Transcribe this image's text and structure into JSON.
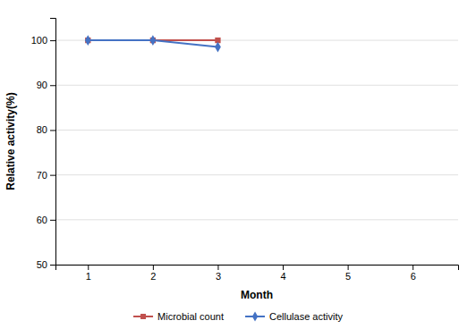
{
  "chart_data": {
    "type": "line",
    "xlabel": "Month",
    "ylabel": "Relative activity(%)",
    "x": [
      1,
      2,
      3
    ],
    "series": [
      {
        "name": "Microbial count",
        "color": "#C0504D",
        "marker": "square",
        "values": [
          100,
          100,
          100
        ]
      },
      {
        "name": "Cellulase activity",
        "color": "#4472C4",
        "marker": "diamond",
        "values": [
          100,
          100,
          98.5
        ]
      }
    ],
    "xlim": [
      0.5,
      6.7
    ],
    "ylim": [
      50,
      105
    ],
    "xticks": [
      1,
      2,
      3,
      4,
      5,
      6
    ],
    "yticks": [
      50,
      60,
      70,
      80,
      90,
      100
    ],
    "grid": true,
    "legend": "bottom"
  }
}
